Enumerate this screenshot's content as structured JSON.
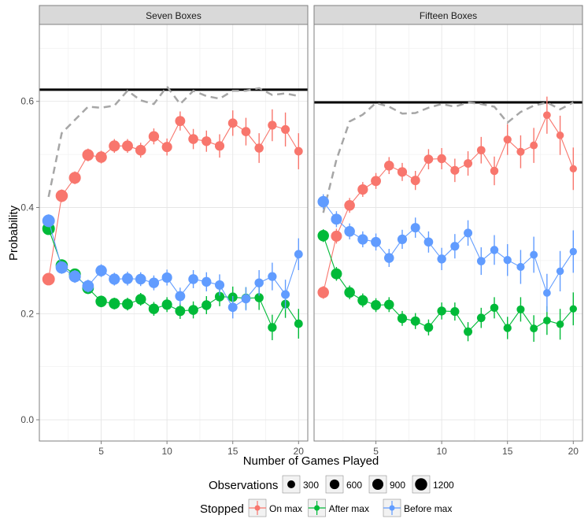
{
  "chart_data": {
    "type": "line",
    "ylabel": "Probability",
    "xlabel": "Number of Games Played",
    "xlim": [
      0.3,
      20.7
    ],
    "ylim": [
      -0.04,
      0.745
    ],
    "x_ticks": [
      5,
      10,
      15,
      20
    ],
    "y_ticks": [
      "0.0",
      "0.2",
      "0.4",
      "0.6"
    ],
    "y_tick_values": [
      0,
      0.2,
      0.4,
      0.6
    ],
    "colors": {
      "on_max": "#f8766d",
      "after_max": "#00ba38",
      "before_max": "#619cff",
      "reference": "#000000",
      "dashed": "#a6a6a6"
    },
    "panels": [
      {
        "title": "Seven Boxes",
        "reference_line": 0.622,
        "dashed_line": {
          "x": [
            1,
            2,
            3,
            4,
            5,
            6,
            7,
            8,
            9,
            10,
            11,
            12,
            13,
            14,
            15,
            16,
            17,
            18,
            19,
            20
          ],
          "y": [
            0.42,
            0.54,
            0.565,
            0.59,
            0.588,
            0.592,
            0.62,
            0.602,
            0.595,
            0.628,
            0.595,
            0.62,
            0.61,
            0.605,
            0.62,
            0.62,
            0.625,
            0.612,
            0.615,
            0.61
          ]
        },
        "series": [
          {
            "name": "On max",
            "key": "on_max",
            "x": [
              1,
              2,
              3,
              4,
              5,
              6,
              7,
              8,
              9,
              10,
              11,
              12,
              13,
              14,
              15,
              16,
              17,
              18,
              19,
              20
            ],
            "y": [
              0.265,
              0.422,
              0.456,
              0.499,
              0.495,
              0.516,
              0.516,
              0.508,
              0.534,
              0.514,
              0.563,
              0.529,
              0.525,
              0.516,
              0.559,
              0.543,
              0.512,
              0.555,
              0.547,
              0.506
            ],
            "err": [
              0.01,
              0.012,
              0.012,
              0.012,
              0.012,
              0.013,
              0.013,
              0.014,
              0.015,
              0.016,
              0.018,
              0.019,
              0.02,
              0.022,
              0.024,
              0.026,
              0.028,
              0.03,
              0.032,
              0.034
            ],
            "n": [
              1300,
              1200,
              1120,
              1050,
              990,
              930,
              880,
              830,
              780,
              740,
              700,
              660,
              620,
              580,
              550,
              520,
              490,
              460,
              430,
              400
            ]
          },
          {
            "name": "After max",
            "key": "after_max",
            "x": [
              1,
              2,
              3,
              4,
              5,
              6,
              7,
              8,
              9,
              10,
              11,
              12,
              13,
              14,
              15,
              16,
              17,
              18,
              19,
              20
            ],
            "y": [
              0.36,
              0.291,
              0.274,
              0.248,
              0.223,
              0.219,
              0.218,
              0.227,
              0.209,
              0.217,
              0.205,
              0.207,
              0.216,
              0.232,
              0.231,
              0.229,
              0.23,
              0.174,
              0.218,
              0.181
            ],
            "err": [
              0.01,
              0.011,
              0.011,
              0.011,
              0.011,
              0.011,
              0.012,
              0.012,
              0.013,
              0.014,
              0.015,
              0.016,
              0.017,
              0.018,
              0.02,
              0.021,
              0.023,
              0.024,
              0.026,
              0.028
            ],
            "n": [
              1300,
              1200,
              1120,
              1050,
              990,
              930,
              880,
              830,
              780,
              740,
              700,
              660,
              620,
              580,
              550,
              520,
              490,
              460,
              430,
              400
            ]
          },
          {
            "name": "Before max",
            "key": "before_max",
            "x": [
              1,
              2,
              3,
              4,
              5,
              6,
              7,
              8,
              9,
              10,
              11,
              12,
              13,
              14,
              15,
              16,
              17,
              18,
              19,
              20
            ],
            "y": [
              0.375,
              0.287,
              0.27,
              0.252,
              0.281,
              0.265,
              0.266,
              0.265,
              0.258,
              0.268,
              0.233,
              0.265,
              0.26,
              0.254,
              0.212,
              0.228,
              0.258,
              0.27,
              0.236,
              0.312
            ],
            "err": [
              0.012,
              0.012,
              0.012,
              0.012,
              0.012,
              0.012,
              0.013,
              0.013,
              0.014,
              0.015,
              0.016,
              0.017,
              0.018,
              0.02,
              0.021,
              0.022,
              0.024,
              0.026,
              0.028,
              0.03
            ],
            "n": [
              1300,
              1200,
              1120,
              1050,
              990,
              930,
              880,
              830,
              780,
              740,
              700,
              660,
              620,
              580,
              550,
              520,
              490,
              460,
              430,
              400
            ]
          }
        ]
      },
      {
        "title": "Fifteen Boxes",
        "reference_line": 0.598,
        "dashed_line": {
          "x": [
            1,
            2,
            3,
            4,
            5,
            6,
            7,
            8,
            9,
            10,
            11,
            12,
            13,
            14,
            15,
            16,
            17,
            18,
            19,
            20
          ],
          "y": [
            0.39,
            0.49,
            0.562,
            0.575,
            0.597,
            0.59,
            0.577,
            0.578,
            0.588,
            0.595,
            0.59,
            0.598,
            0.595,
            0.59,
            0.56,
            0.58,
            0.592,
            0.598,
            0.585,
            0.598
          ]
        },
        "series": [
          {
            "name": "On max",
            "key": "on_max",
            "x": [
              1,
              2,
              3,
              4,
              5,
              6,
              7,
              8,
              9,
              10,
              11,
              12,
              13,
              14,
              15,
              16,
              17,
              18,
              19,
              20
            ],
            "y": [
              0.24,
              0.346,
              0.404,
              0.434,
              0.45,
              0.479,
              0.467,
              0.451,
              0.491,
              0.492,
              0.47,
              0.483,
              0.508,
              0.469,
              0.528,
              0.505,
              0.517,
              0.574,
              0.536,
              0.473
            ],
            "err": [
              0.012,
              0.014,
              0.014,
              0.014,
              0.015,
              0.016,
              0.017,
              0.018,
              0.019,
              0.02,
              0.022,
              0.023,
              0.025,
              0.027,
              0.029,
              0.031,
              0.033,
              0.035,
              0.037,
              0.04
            ],
            "n": [
              1000,
              900,
              820,
              760,
              700,
              650,
              600,
              560,
              520,
              480,
              450,
              420,
              390,
              360,
              340,
              320,
              300,
              280,
              260,
              240
            ]
          },
          {
            "name": "After max",
            "key": "after_max",
            "x": [
              1,
              2,
              3,
              4,
              5,
              6,
              7,
              8,
              9,
              10,
              11,
              12,
              13,
              14,
              15,
              16,
              17,
              18,
              19,
              20
            ],
            "y": [
              0.347,
              0.275,
              0.24,
              0.225,
              0.216,
              0.217,
              0.191,
              0.186,
              0.174,
              0.205,
              0.204,
              0.166,
              0.192,
              0.211,
              0.173,
              0.208,
              0.172,
              0.187,
              0.18,
              0.209
            ],
            "err": [
              0.012,
              0.013,
              0.013,
              0.013,
              0.013,
              0.014,
              0.014,
              0.015,
              0.015,
              0.016,
              0.017,
              0.018,
              0.019,
              0.02,
              0.021,
              0.023,
              0.025,
              0.027,
              0.029,
              0.031
            ],
            "n": [
              1000,
              900,
              820,
              760,
              700,
              650,
              600,
              560,
              520,
              480,
              450,
              420,
              390,
              360,
              340,
              320,
              300,
              280,
              260,
              240
            ]
          },
          {
            "name": "Before max",
            "key": "before_max",
            "x": [
              1,
              2,
              3,
              4,
              5,
              6,
              7,
              8,
              9,
              10,
              11,
              12,
              13,
              14,
              15,
              16,
              17,
              18,
              19,
              20
            ],
            "y": [
              0.411,
              0.378,
              0.355,
              0.34,
              0.335,
              0.305,
              0.34,
              0.362,
              0.335,
              0.303,
              0.327,
              0.352,
              0.299,
              0.32,
              0.301,
              0.288,
              0.311,
              0.239,
              0.28,
              0.317
            ],
            "err": [
              0.014,
              0.015,
              0.015,
              0.015,
              0.016,
              0.017,
              0.018,
              0.019,
              0.02,
              0.021,
              0.023,
              0.024,
              0.026,
              0.028,
              0.03,
              0.032,
              0.034,
              0.036,
              0.038,
              0.04
            ],
            "n": [
              1000,
              900,
              820,
              760,
              700,
              650,
              600,
              560,
              520,
              480,
              450,
              420,
              390,
              360,
              340,
              320,
              300,
              280,
              260,
              240
            ]
          }
        ]
      }
    ],
    "legend": {
      "size_title": "Observations",
      "size_entries": [
        {
          "label": "300",
          "n": 300
        },
        {
          "label": "600",
          "n": 600
        },
        {
          "label": "900",
          "n": 900
        },
        {
          "label": "1200",
          "n": 1200
        }
      ],
      "color_title": "Stopped",
      "color_entries": [
        {
          "label": "On max",
          "key": "on_max"
        },
        {
          "label": "After max",
          "key": "after_max"
        },
        {
          "label": "Before max",
          "key": "before_max"
        }
      ],
      "placement": "bottom"
    }
  }
}
